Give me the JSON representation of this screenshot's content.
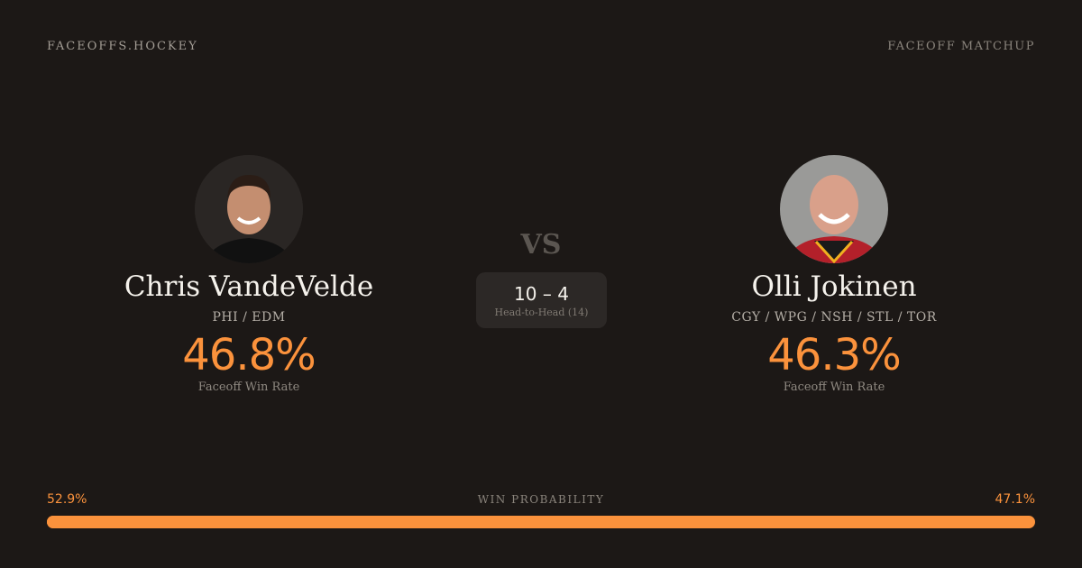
{
  "header": {
    "brand": "FACEOFFS.HOCKEY",
    "tag": "FACEOFF MATCHUP"
  },
  "players": [
    {
      "name": "Chris VandeVelde",
      "teams": "PHI / EDM",
      "rate": "46.8%",
      "rate_label": "Faceoff Win Rate"
    },
    {
      "name": "Olli Jokinen",
      "teams": "CGY / WPG / NSH / STL / TOR",
      "rate": "46.3%",
      "rate_label": "Faceoff Win Rate"
    }
  ],
  "vs": "VS",
  "head_to_head": {
    "score": "10 – 4",
    "label": "Head-to-Head (14)"
  },
  "probability": {
    "title": "WIN PROBABILITY",
    "left": "52.9%",
    "right": "47.1%",
    "left_value": 52.9,
    "colors": {
      "left": "#fb923c",
      "right": "#fb923c"
    }
  },
  "colors": {
    "accent": "#fb923c",
    "background": "#1c1816"
  }
}
